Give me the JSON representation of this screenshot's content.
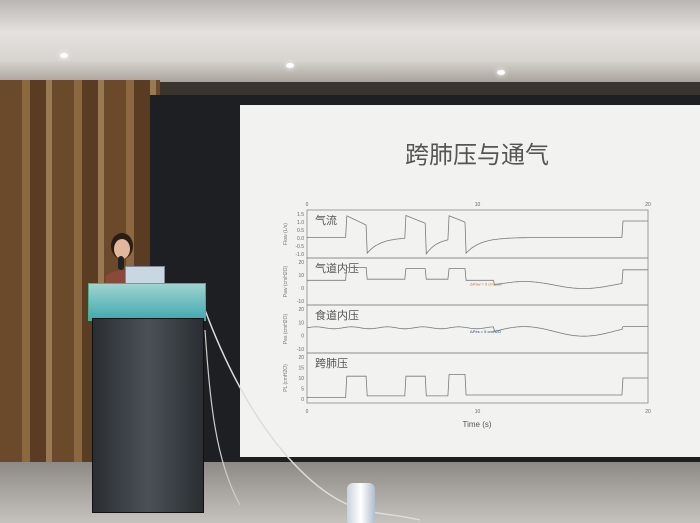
{
  "slide": {
    "title": "跨肺压与通气",
    "panels": [
      {
        "label": "气流",
        "ylabel": "Flow (L/s)",
        "ticks": [
          "1.5",
          "1.0",
          "0.5",
          "0.0",
          "-0.5",
          "-1.0"
        ]
      },
      {
        "label": "气道内压",
        "ylabel": "Paw (cmH2O)",
        "ticks": [
          "20",
          "10",
          "0",
          "-10"
        ],
        "annotation": "ΔPaw = 5 cmH2O"
      },
      {
        "label": "食道内压",
        "ylabel": "Pes (cmH2O)",
        "ticks": [
          "20",
          "10",
          "0",
          "-10"
        ],
        "annotation": "ΔPes = 5 cmH2O"
      },
      {
        "label": "跨肺压",
        "ylabel": "PL (cmH2O)",
        "ticks": [
          "20",
          "15",
          "10",
          "5",
          "0"
        ]
      }
    ],
    "xticks": [
      "0",
      "10",
      "20"
    ],
    "xlabel": "Time (s)",
    "colors": {
      "trace": "#7a7a7a",
      "paw_annotation": "#c8742e",
      "pes_annotation": "#2a3a8a",
      "caption": "#6fd0d0"
    }
  },
  "icons": {
    "microphone": "microphone-icon",
    "bottle": "water-bottle-icon"
  }
}
